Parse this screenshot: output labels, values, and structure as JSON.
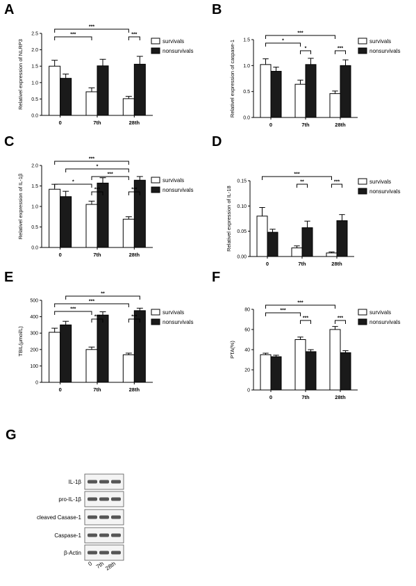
{
  "chart_data": [
    {
      "panel": "A",
      "type": "bar",
      "ylabel": "Relativel expression of NLRP3",
      "categories": [
        "0",
        "7th",
        "28th"
      ],
      "ylim": [
        0,
        2.5
      ],
      "yticks": [
        "0.0",
        "0.5",
        "1.0",
        "1.5",
        "2.0",
        "2.5"
      ],
      "series": [
        {
          "name": "survivals",
          "values": [
            1.5,
            0.72,
            0.51
          ],
          "errors": [
            0.18,
            0.12,
            0.07
          ]
        },
        {
          "name": "nonsurvivals",
          "values": [
            1.13,
            1.51,
            1.56
          ],
          "errors": [
            0.13,
            0.2,
            0.24
          ]
        }
      ],
      "significance": [
        {
          "from": [
            0,
            0
          ],
          "to": [
            2,
            0
          ],
          "label": "***",
          "level": 0
        },
        {
          "from": [
            0,
            0
          ],
          "to": [
            1,
            0
          ],
          "label": "***",
          "level": 1
        },
        {
          "from": [
            2,
            0
          ],
          "to": [
            2,
            1
          ],
          "label": "***",
          "level": 1
        }
      ]
    },
    {
      "panel": "B",
      "type": "bar",
      "ylabel": "Relativel expression of caspase-1",
      "categories": [
        "0",
        "7th",
        "28th"
      ],
      "ylim": [
        0,
        1.5
      ],
      "yticks": [
        "0.0",
        "0.5",
        "1.0",
        "1.5"
      ],
      "series": [
        {
          "name": "survivals",
          "values": [
            1.02,
            0.64,
            0.46
          ],
          "errors": [
            0.11,
            0.08,
            0.05
          ]
        },
        {
          "name": "nonsurvivals",
          "values": [
            0.89,
            1.02,
            1.0
          ],
          "errors": [
            0.08,
            0.12,
            0.11
          ]
        }
      ],
      "significance": [
        {
          "from": [
            0,
            0
          ],
          "to": [
            2,
            0
          ],
          "label": "***",
          "level": 0
        },
        {
          "from": [
            0,
            0
          ],
          "to": [
            1,
            0
          ],
          "label": "*",
          "level": 1
        },
        {
          "from": [
            1,
            0
          ],
          "to": [
            1,
            1
          ],
          "label": "*",
          "level": 2
        },
        {
          "from": [
            2,
            0
          ],
          "to": [
            2,
            1
          ],
          "label": "***",
          "level": 2
        }
      ]
    },
    {
      "panel": "C",
      "type": "bar",
      "ylabel": "Relativel expression of IL-1β",
      "categories": [
        "0",
        "7th",
        "28th"
      ],
      "ylim": [
        0,
        2.0
      ],
      "yticks": [
        "0.0",
        "0.5",
        "1.0",
        "1.5",
        "2.0"
      ],
      "series": [
        {
          "name": "survivals",
          "values": [
            1.42,
            1.05,
            0.69
          ],
          "errors": [
            0.12,
            0.08,
            0.06
          ]
        },
        {
          "name": "nonsurvivals",
          "values": [
            1.24,
            1.57,
            1.64
          ],
          "errors": [
            0.13,
            0.13,
            0.09
          ]
        }
      ],
      "significance": [
        {
          "from": [
            0,
            0
          ],
          "to": [
            2,
            0
          ],
          "label": "***",
          "level": 0
        },
        {
          "from": [
            0,
            1
          ],
          "to": [
            2,
            0
          ],
          "label": "*",
          "level": 1
        },
        {
          "from": [
            1,
            0
          ],
          "to": [
            2,
            0
          ],
          "label": "***",
          "level": 2
        },
        {
          "from": [
            0,
            0
          ],
          "to": [
            1,
            0
          ],
          "label": "*",
          "level": 3
        },
        {
          "from": [
            1,
            0
          ],
          "to": [
            1,
            1
          ],
          "label": "***",
          "level": 4
        },
        {
          "from": [
            2,
            0
          ],
          "to": [
            2,
            1
          ],
          "label": "***",
          "level": 4
        }
      ]
    },
    {
      "panel": "D",
      "type": "bar",
      "ylabel": "Relativel expression of IL-18",
      "categories": [
        "0",
        "7th",
        "28th"
      ],
      "ylim": [
        0,
        0.15
      ],
      "yticks": [
        "0.00",
        "0.05",
        "0.10",
        "0.15"
      ],
      "series": [
        {
          "name": "survivals",
          "values": [
            0.08,
            0.017,
            0.007
          ],
          "errors": [
            0.017,
            0.004,
            0.002
          ]
        },
        {
          "name": "nonsurvivals",
          "values": [
            0.048,
            0.057,
            0.071
          ],
          "errors": [
            0.006,
            0.013,
            0.012
          ]
        }
      ],
      "significance": [
        {
          "from": [
            0,
            0
          ],
          "to": [
            2,
            0
          ],
          "label": "***",
          "level": 0
        },
        {
          "from": [
            1,
            0
          ],
          "to": [
            1,
            1
          ],
          "label": "**",
          "level": 1
        },
        {
          "from": [
            2,
            0
          ],
          "to": [
            2,
            1
          ],
          "label": "***",
          "level": 1
        }
      ]
    },
    {
      "panel": "E",
      "type": "bar",
      "ylabel": "TBIL(μmol/L)",
      "categories": [
        "0",
        "7th",
        "28th"
      ],
      "ylim": [
        0,
        500
      ],
      "yticks": [
        "0",
        "100",
        "200",
        "300",
        "400",
        "500"
      ],
      "series": [
        {
          "name": "survivals",
          "values": [
            305,
            200,
            168
          ],
          "errors": [
            25,
            15,
            10
          ]
        },
        {
          "name": "nonsurvivals",
          "values": [
            350,
            410,
            437
          ],
          "errors": [
            22,
            20,
            15
          ]
        }
      ],
      "significance": [
        {
          "from": [
            0,
            1
          ],
          "to": [
            2,
            1
          ],
          "label": "**",
          "level": 0
        },
        {
          "from": [
            0,
            0
          ],
          "to": [
            2,
            0
          ],
          "label": "***",
          "level": 1
        },
        {
          "from": [
            0,
            0
          ],
          "to": [
            1,
            0
          ],
          "label": "***",
          "level": 2
        },
        {
          "from": [
            1,
            0
          ],
          "to": [
            1,
            1
          ],
          "label": "***",
          "level": 3
        },
        {
          "from": [
            2,
            0
          ],
          "to": [
            2,
            1
          ],
          "label": "***",
          "level": 3
        }
      ]
    },
    {
      "panel": "F",
      "type": "bar",
      "ylabel": "PTA(%)",
      "categories": [
        "0",
        "7th",
        "28th"
      ],
      "ylim": [
        0,
        80
      ],
      "yticks": [
        "0",
        "20",
        "40",
        "60",
        "80"
      ],
      "series": [
        {
          "name": "survivals",
          "values": [
            35,
            50,
            60
          ],
          "errors": [
            1.5,
            2.5,
            3
          ]
        },
        {
          "name": "nonsurvivals",
          "values": [
            33,
            38,
            37
          ],
          "errors": [
            1.5,
            2,
            2
          ]
        }
      ],
      "significance": [
        {
          "from": [
            0,
            0
          ],
          "to": [
            2,
            0
          ],
          "label": "***",
          "level": 0
        },
        {
          "from": [
            0,
            0
          ],
          "to": [
            1,
            0
          ],
          "label": "***",
          "level": 1
        },
        {
          "from": [
            1,
            0
          ],
          "to": [
            1,
            1
          ],
          "label": "***",
          "level": 2
        },
        {
          "from": [
            2,
            0
          ],
          "to": [
            2,
            1
          ],
          "label": "***",
          "level": 2
        }
      ]
    }
  ],
  "western_blot": {
    "panel": "G",
    "rows": [
      "IL-1β",
      "pro-IL-1β",
      "cleaved Casase-1",
      "Caspase-1",
      "β-Actin"
    ],
    "lanes": [
      "0",
      "7th",
      "28th"
    ]
  },
  "colors": {
    "survivals": "#ffffff",
    "nonsurvivals": "#1a1a1a",
    "axis": "#000000"
  }
}
